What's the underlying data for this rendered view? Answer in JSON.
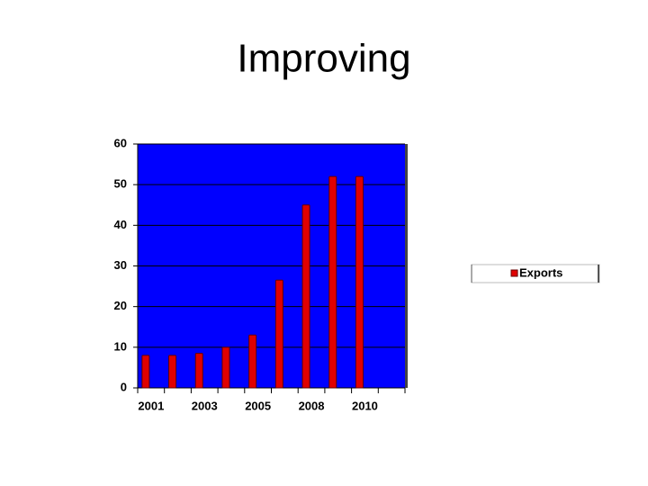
{
  "chart_data": {
    "type": "bar",
    "title": "Improving",
    "categories": [
      "2001",
      null,
      "2003",
      null,
      "2005",
      null,
      "2008",
      null,
      "2010",
      null
    ],
    "series": [
      {
        "name": "Exports",
        "color": "#e00000",
        "values": [
          8,
          8,
          8.5,
          10,
          13,
          26.5,
          45,
          52,
          52,
          null
        ]
      }
    ],
    "ylim": [
      0,
      60
    ],
    "yticks": [
      0,
      10,
      20,
      30,
      40,
      50,
      60
    ],
    "grid": true,
    "plot_background": "#0000ff",
    "legend": "right"
  }
}
